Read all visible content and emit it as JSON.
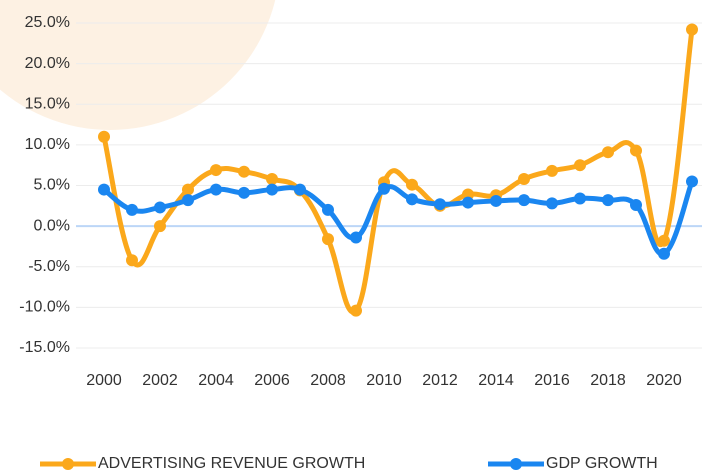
{
  "chart_data": {
    "type": "line",
    "x": [
      2000,
      2001,
      2002,
      2003,
      2004,
      2005,
      2006,
      2007,
      2008,
      2009,
      2010,
      2011,
      2012,
      2013,
      2014,
      2015,
      2016,
      2017,
      2018,
      2019,
      2020,
      2021
    ],
    "series": [
      {
        "name": "ADVERTISING REVENUE GROWTH",
        "color": "#fba81b",
        "values": [
          11.0,
          -4.2,
          0.0,
          4.5,
          6.9,
          6.7,
          5.8,
          4.4,
          -1.6,
          -10.4,
          5.4,
          5.1,
          2.5,
          3.9,
          3.8,
          5.8,
          6.8,
          7.5,
          9.1,
          9.3,
          -1.8,
          24.2
        ]
      },
      {
        "name": "GDP GROWTH",
        "color": "#1a86f0",
        "values": [
          4.5,
          2.0,
          2.3,
          3.2,
          4.5,
          4.1,
          4.5,
          4.5,
          2.0,
          -1.4,
          4.6,
          3.3,
          2.7,
          2.9,
          3.1,
          3.2,
          2.8,
          3.4,
          3.2,
          2.6,
          -3.4,
          5.5
        ]
      }
    ],
    "xlim": [
      2000,
      2021
    ],
    "xticks": [
      2000,
      2002,
      2004,
      2006,
      2008,
      2010,
      2012,
      2014,
      2016,
      2018,
      2020
    ],
    "ylim": [
      -15,
      25
    ],
    "yticks": [
      {
        "value": -15,
        "label": "-15.0%"
      },
      {
        "value": -10,
        "label": "-10.0%"
      },
      {
        "value": -5,
        "label": "-5.0%"
      },
      {
        "value": 0,
        "label": "0.0%"
      },
      {
        "value": 5,
        "label": "5.0%"
      },
      {
        "value": 10,
        "label": "10.0%"
      },
      {
        "value": 15,
        "label": "15.0%"
      },
      {
        "value": 20,
        "label": "20.0%"
      },
      {
        "value": 25,
        "label": "25.0%"
      }
    ],
    "grid": true,
    "legend": "bottom"
  }
}
